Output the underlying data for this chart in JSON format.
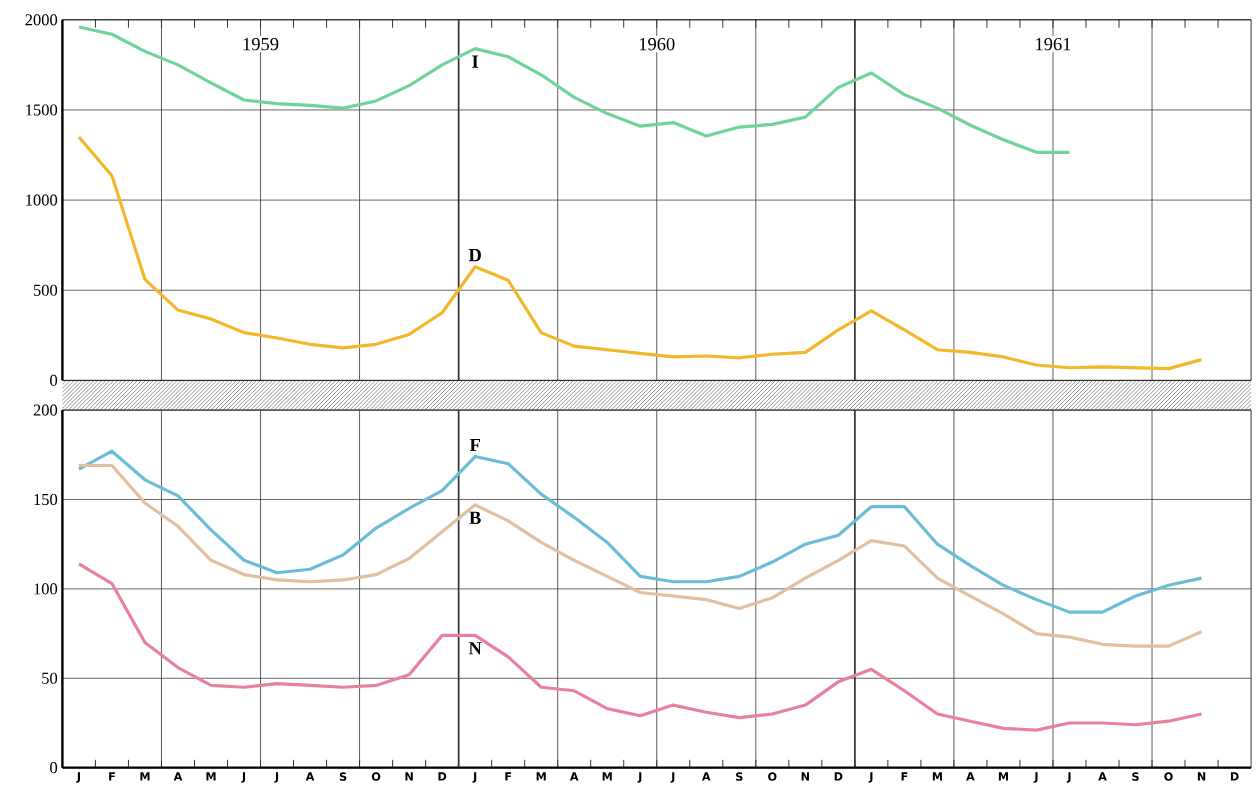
{
  "chart_data": [
    {
      "type": "line",
      "tick_labels": "y",
      "grid": true,
      "ylim": [
        0,
        2000
      ],
      "yticks": [
        0,
        500,
        1000,
        1500,
        2000
      ],
      "categories": [
        null,
        null,
        null,
        null,
        null,
        null,
        null,
        null,
        null,
        null,
        null,
        null,
        null,
        null,
        null,
        null,
        null,
        null,
        null,
        null,
        null,
        null,
        null,
        null,
        null,
        null,
        null,
        null,
        null,
        null,
        null,
        null,
        null,
        null,
        null,
        null
      ],
      "series": [
        {
          "name": "I",
          "color": "#6fd39a",
          "values": [
            1960,
            1920,
            1825,
            1750,
            1650,
            1555,
            1535,
            1525,
            1510,
            1550,
            1635,
            1750,
            1840,
            1795,
            1695,
            1570,
            1480,
            1410,
            1430,
            1355,
            1405,
            1420,
            1460,
            1625,
            1705,
            1585,
            1510,
            1415,
            1335,
            1265,
            1265,
            null,
            null,
            null,
            null,
            null
          ]
        },
        {
          "name": "D",
          "color": "#f2b82a",
          "values": [
            1350,
            1135,
            560,
            390,
            340,
            265,
            235,
            200,
            180,
            200,
            255,
            375,
            630,
            555,
            265,
            190,
            170,
            150,
            130,
            135,
            125,
            145,
            155,
            280,
            385,
            280,
            170,
            155,
            130,
            85,
            70,
            75,
            70,
            65,
            115,
            null
          ]
        }
      ],
      "annotations": [
        "1959",
        "1960",
        "1961"
      ]
    },
    {
      "type": "line",
      "grid": true,
      "ylim": [
        0,
        200
      ],
      "yticks": [
        0,
        50,
        100,
        150,
        200
      ],
      "categories": [
        "J",
        "F",
        "M",
        "A",
        "M",
        "J",
        "J",
        "A",
        "S",
        "O",
        "N",
        "D",
        "J",
        "F",
        "M",
        "A",
        "M",
        "J",
        "J",
        "A",
        "S",
        "O",
        "N",
        "D",
        "J",
        "F",
        "M",
        "A",
        "M",
        "J",
        "J",
        "A",
        "S",
        "O",
        "N",
        "D"
      ],
      "series": [
        {
          "name": "F",
          "color": "#6bbcd6",
          "values": [
            167,
            177,
            161,
            152,
            133,
            116,
            109,
            111,
            119,
            134,
            145,
            155,
            174,
            170,
            153,
            140,
            126,
            107,
            104,
            104,
            107,
            115,
            125,
            130,
            146,
            146,
            125,
            113,
            102,
            94,
            87,
            87,
            96,
            102,
            106,
            null
          ]
        },
        {
          "name": "B",
          "color": "#e0c0a0",
          "values": [
            169,
            169,
            148,
            135,
            116,
            108,
            105,
            104,
            105,
            108,
            117,
            132,
            147,
            138,
            126,
            116,
            107,
            98,
            96,
            94,
            89,
            95,
            106,
            116,
            127,
            124,
            106,
            96,
            86,
            75,
            73,
            69,
            68,
            68,
            76,
            null
          ]
        },
        {
          "name": "N",
          "color": "#e8819a",
          "values": [
            114,
            103,
            70,
            56,
            46,
            45,
            47,
            46,
            45,
            46,
            52,
            74,
            74,
            62,
            45,
            43,
            33,
            29,
            35,
            31,
            28,
            30,
            35,
            48,
            55,
            43,
            30,
            26,
            22,
            21,
            25,
            25,
            24,
            26,
            30,
            null
          ]
        }
      ]
    }
  ]
}
